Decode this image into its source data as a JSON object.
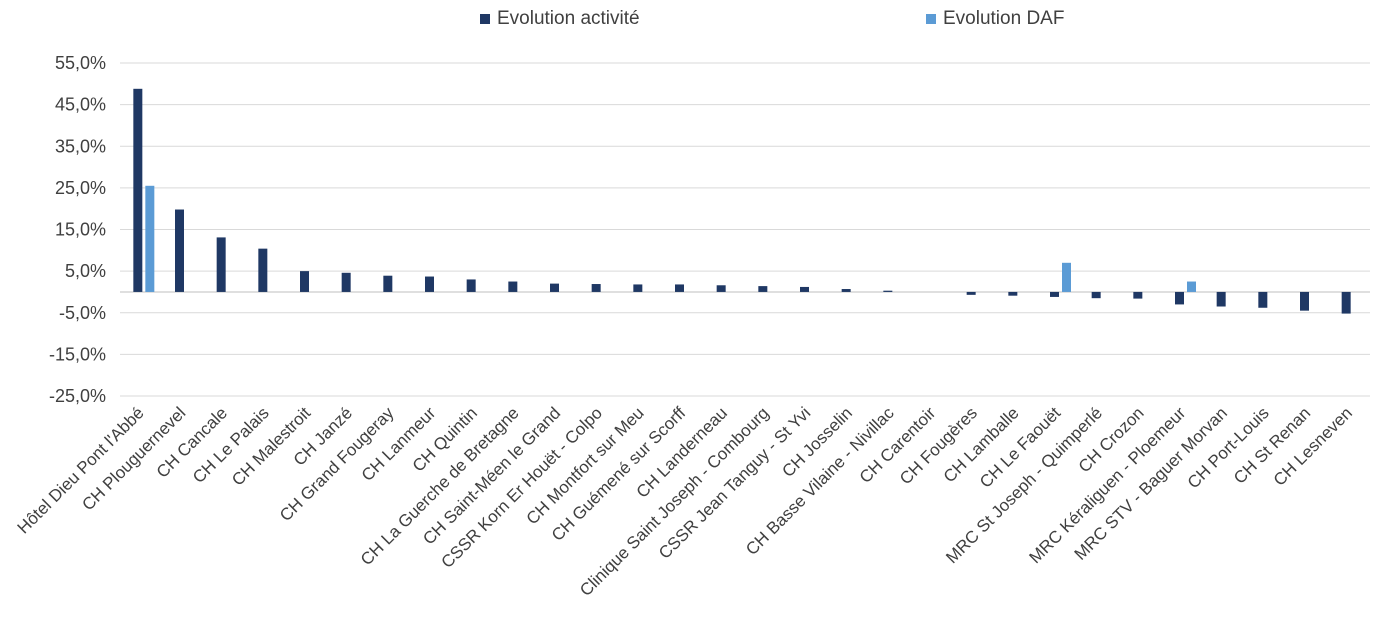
{
  "chart_data": {
    "type": "bar",
    "categories": [
      "Hôtel Dieu Pont l'Abbé",
      "CH Plouguernevel",
      "CH Cancale",
      "CH Le Palais",
      "CH Malestroit",
      "CH Janzé",
      "CH Grand Fougeray",
      "CH Lanmeur",
      "CH Quintin",
      "CH La Guerche de Bretagne",
      "CH Saint-Méen le Grand",
      "CSSR Korn Er Houët - Colpo",
      "CH Montfort sur Meu",
      "CH Guémené sur Scorff",
      "CH Landerneau",
      "Clinique Saint Joseph - Combourg",
      "CSSR Jean Tanguy - St Yvi",
      "CH Josselin",
      "CH Basse Vilaine - Nivillac",
      "CH Carentoir",
      "CH Fougères",
      "CH Lamballe",
      "CH Le Faouët",
      "MRC St Joseph - Quimperlé",
      "CH Crozon",
      "MRC Kéraliguen - Ploemeur",
      "MRC STV - Baguer Morvan",
      "CH Port-Louis",
      "CH St Renan",
      "CH Lesneven"
    ],
    "series": [
      {
        "name": "Evolution activité",
        "color": "#1f3864",
        "values": [
          48.8,
          19.8,
          13.1,
          10.4,
          5.0,
          4.6,
          3.9,
          3.7,
          3.0,
          2.5,
          2.0,
          1.9,
          1.8,
          1.8,
          1.6,
          1.4,
          1.2,
          0.7,
          0.3,
          0.0,
          -0.7,
          -0.9,
          -1.2,
          -1.5,
          -1.6,
          -3.0,
          -3.5,
          -3.8,
          -4.5,
          -5.2
        ]
      },
      {
        "name": "Evolution DAF",
        "color": "#5b9bd5",
        "values": [
          25.5,
          null,
          null,
          null,
          null,
          null,
          null,
          null,
          null,
          null,
          null,
          null,
          null,
          null,
          null,
          null,
          null,
          null,
          null,
          null,
          null,
          null,
          7.0,
          null,
          null,
          2.5,
          null,
          null,
          null,
          null
        ]
      }
    ],
    "yticks": [
      "55,0%",
      "45,0%",
      "35,0%",
      "25,0%",
      "15,0%",
      "5,0%",
      "-5,0%",
      "-15,0%",
      "-25,0%"
    ],
    "ylim": [
      -25,
      55
    ],
    "legend_position": "top-center",
    "grid": true
  }
}
